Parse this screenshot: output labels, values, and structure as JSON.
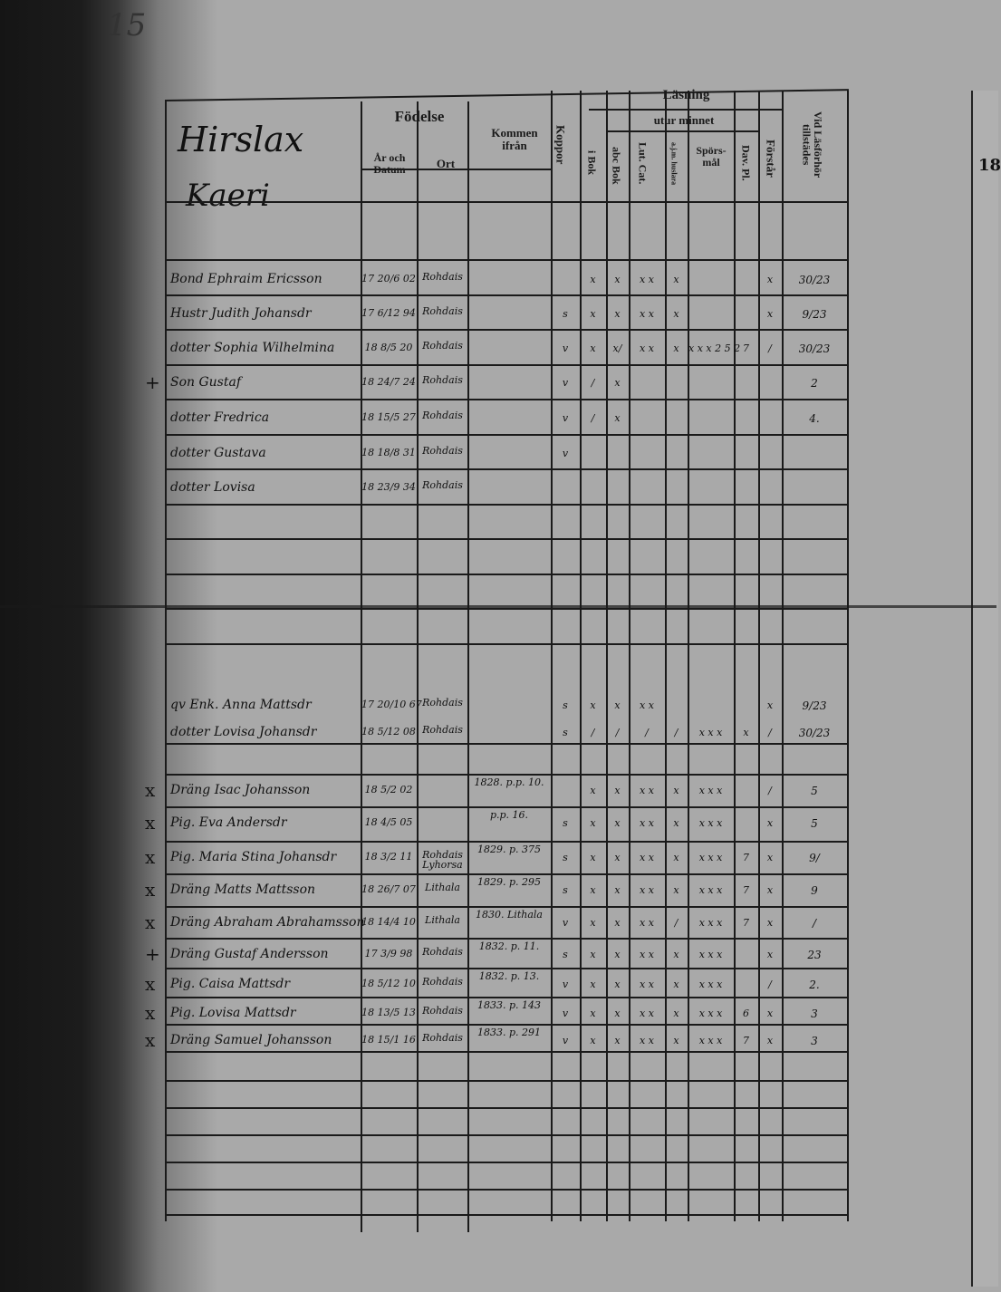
{
  "page_number": "15",
  "household": {
    "place": "Hirslax",
    "name": "Kaeri"
  },
  "headers": {
    "fodelse": "Födelse",
    "ar_och_datum": "År och Datum",
    "ort": "Ort",
    "kommen_ifran": "Kommen ifrån",
    "koppor": "Koppor",
    "lasning": "Läsning",
    "utur_minnet": "utur minnet",
    "i_bok": "i Bok",
    "abc_bok": "abc Bok",
    "lut_cat": "Lut. Cat.",
    "ajm": "a.j.m. huslara",
    "sporsmal": "Spörs-mål",
    "dav_pl": "Dav. Pl.",
    "forstar": "Förstår",
    "vid_lasforhor": "Vid Läsförhör tillstädes"
  },
  "right_page_fragment": "18",
  "entries": [
    {
      "mark": "",
      "name": "Bond Ephraim Ericsson",
      "born": "17 20/6 02",
      "ort": "Rohdais",
      "from": "",
      "marks": [
        "",
        "x",
        "x",
        "x x",
        "x",
        "",
        "",
        "x",
        "30/23"
      ]
    },
    {
      "mark": "",
      "name": "Hustr Judith Johansdr",
      "born": "17 6/12 94",
      "ort": "Rohdais",
      "from": "",
      "marks": [
        "s",
        "x",
        "x",
        "x x",
        "x",
        "",
        "",
        "x",
        "9/23"
      ]
    },
    {
      "mark": "",
      "name": "dotter Sophia Wilhelmina",
      "born": "18 8/5 20",
      "ort": "Rohdais",
      "from": "",
      "marks": [
        "v",
        "x",
        "x/",
        "x x",
        "x",
        "x x x 2 5 2",
        "7",
        "/",
        "30/23"
      ]
    },
    {
      "mark": "+",
      "name": "Son Gustaf",
      "born": "18 24/7 24",
      "ort": "Rohdais",
      "from": "",
      "marks": [
        "v",
        "/",
        "x",
        "",
        "",
        "",
        "",
        "",
        "2"
      ]
    },
    {
      "mark": "",
      "name": "dotter Fredrica",
      "born": "18 15/5 27",
      "ort": "Rohdais",
      "from": "",
      "marks": [
        "v",
        "/",
        "x",
        "",
        "",
        "",
        "",
        "",
        "4."
      ]
    },
    {
      "mark": "",
      "name": "dotter Gustava",
      "born": "18 18/8 31",
      "ort": "Rohdais",
      "from": "",
      "marks": [
        "v",
        "",
        "",
        "",
        "",
        "",
        "",
        "",
        ""
      ]
    },
    {
      "mark": "",
      "name": "dotter Lovisa",
      "born": "18 23/9 34",
      "ort": "Rohdais",
      "from": "",
      "marks": [
        "",
        "",
        "",
        "",
        "",
        "",
        "",
        "",
        ""
      ]
    },
    {
      "mark": "",
      "name": "qv Enk. Anna Mattsdr",
      "born": "17 20/10 67",
      "ort": "Rohdais",
      "from": "",
      "marks": [
        "s",
        "x",
        "x",
        "x x",
        "",
        "",
        "",
        "x",
        "9/23"
      ]
    },
    {
      "mark": "",
      "name": "dotter Lovisa Johansdr",
      "born": "18 5/12 08",
      "ort": "Rohdais",
      "from": "",
      "marks": [
        "s",
        "/",
        "/",
        "/",
        "/",
        "x x x",
        "x",
        "/",
        "30/23"
      ]
    },
    {
      "mark": "x",
      "name": "Dräng Isac Johansson",
      "born": "18 5/2 02",
      "ort": "",
      "from": "1828. p.p. 10.",
      "marks": [
        "",
        "x",
        "x",
        "x x",
        "x",
        "x x x",
        "",
        "/",
        "5"
      ]
    },
    {
      "mark": "x",
      "name": "Pig. Eva Andersdr",
      "born": "18 4/5 05",
      "ort": "",
      "from": "p.p. 16.",
      "marks": [
        "s",
        "x",
        "x",
        "x x",
        "x",
        "x x x",
        "",
        "x",
        "5"
      ]
    },
    {
      "mark": "x",
      "name": "Pig. Maria Stina Johansdr",
      "born": "18 3/2 11",
      "ort": "Rohdais Lyhorsa",
      "from": "1829. p. 375",
      "marks": [
        "s",
        "x",
        "x",
        "x x",
        "x",
        "x x x",
        "7",
        "x",
        "9/"
      ]
    },
    {
      "mark": "x",
      "name": "Dräng Matts Mattsson",
      "born": "18 26/7 07",
      "ort": "Lithala",
      "from": "1829. p. 295",
      "marks": [
        "s",
        "x",
        "x",
        "x x",
        "x",
        "x x x",
        "7",
        "x",
        "9"
      ]
    },
    {
      "mark": "x",
      "name": "Dräng Abraham Abrahamsson",
      "born": "18 14/4 10",
      "ort": "Lithala",
      "from": "1830. Lithala",
      "marks": [
        "v",
        "x",
        "x",
        "x x",
        "/",
        "x x x",
        "7",
        "x",
        "/"
      ]
    },
    {
      "mark": "+",
      "name": "Dräng Gustaf Andersson",
      "born": "17 3/9 98",
      "ort": "Rohdais",
      "from": "1832. p. 11.",
      "marks": [
        "s",
        "x",
        "x",
        "x x",
        "x",
        "x x x",
        "",
        "x",
        "23"
      ]
    },
    {
      "mark": "x",
      "name": "Pig. Caisa Mattsdr",
      "born": "18 5/12 10",
      "ort": "Rohdais",
      "from": "1832. p. 13.",
      "marks": [
        "v",
        "x",
        "x",
        "x x",
        "x",
        "x x x",
        "",
        "/",
        "2."
      ]
    },
    {
      "mark": "x",
      "name": "Pig. Lovisa Mattsdr",
      "born": "18 13/5 13",
      "ort": "Rohdais",
      "from": "1833. p. 143",
      "marks": [
        "v",
        "x",
        "x",
        "x x",
        "x",
        "x x x",
        "6",
        "x",
        "3"
      ]
    },
    {
      "mark": "x",
      "name": "Dräng Samuel Johansson",
      "born": "18 15/1 16",
      "ort": "Rohdais",
      "from": "1833. p. 291",
      "marks": [
        "v",
        "x",
        "x",
        "x x",
        "x",
        "x x x",
        "7",
        "x",
        "3"
      ]
    }
  ]
}
